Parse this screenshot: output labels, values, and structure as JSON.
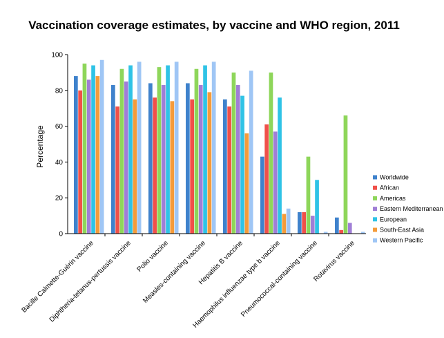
{
  "chart_data": {
    "type": "bar",
    "title": "Vaccination coverage estimates, by vaccine and WHO region, 2011",
    "xlabel": "",
    "ylabel": "Percentage",
    "ylim": [
      0,
      100
    ],
    "yticks": [
      0,
      20,
      40,
      60,
      80,
      100
    ],
    "grid": false,
    "legend_position": "right",
    "categories": [
      "Bacille Calmette-Guérin vaccine",
      "Diphtheria-tetanus-pertussis vaccine",
      "Polio vaccine",
      "Measles-containing vaccine",
      "Hepatitis B vaccine",
      "Haemophilus influenzae type b vaccine",
      "Pneumococcal-containing vaccine",
      "Rotavirus vaccine"
    ],
    "series": [
      {
        "name": "Worldwide",
        "color": "#3f82cc",
        "values": [
          88,
          83,
          84,
          84,
          75,
          43,
          12,
          9
        ]
      },
      {
        "name": "African",
        "color": "#f0504a",
        "values": [
          80,
          71,
          76,
          75,
          71,
          61,
          12,
          2
        ]
      },
      {
        "name": "Americas",
        "color": "#8ed65a",
        "values": [
          95,
          92,
          93,
          92,
          90,
          90,
          43,
          66
        ]
      },
      {
        "name": "Eastern Mediterranean",
        "color": "#a07ed6",
        "values": [
          86,
          85,
          83,
          83,
          83,
          57,
          10,
          6
        ]
      },
      {
        "name": "European",
        "color": "#2fc3e6",
        "values": [
          94,
          94,
          94,
          94,
          77,
          76,
          30,
          0
        ]
      },
      {
        "name": "South-East Asia",
        "color": "#f59b3a",
        "values": [
          88,
          75,
          74,
          79,
          56,
          11,
          0,
          0
        ]
      },
      {
        "name": "Western Pacific",
        "color": "#9fc6f5",
        "values": [
          97,
          96,
          96,
          96,
          91,
          14,
          1,
          1
        ]
      }
    ]
  }
}
